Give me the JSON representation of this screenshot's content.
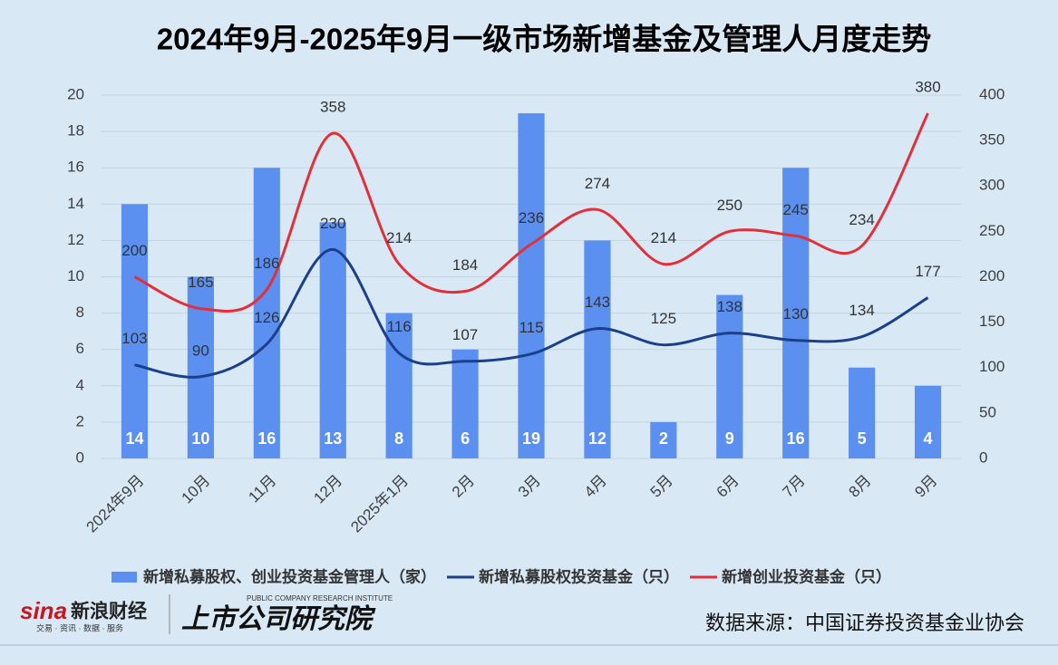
{
  "chart_data": {
    "type": "bar-line",
    "title": "2024年9月-2025年9月一级市场新增基金及管理人月度走势",
    "categories": [
      "2024年9月",
      "10月",
      "11月",
      "12月",
      "2025年1月",
      "2月",
      "3月",
      "4月",
      "5月",
      "6月",
      "7月",
      "8月",
      "9月"
    ],
    "series": [
      {
        "name": "新增私募股权、创业投资基金管理人（家）",
        "type": "bar",
        "color": "#5b8ff0",
        "values": [
          14,
          10,
          16,
          13,
          8,
          6,
          19,
          12,
          2,
          9,
          16,
          5,
          4
        ]
      },
      {
        "name": "新增私募股权投资基金（只）",
        "type": "line",
        "axis": "y2",
        "color": "#1c3f8c",
        "values": [
          103,
          90,
          126,
          230,
          116,
          107,
          115,
          143,
          125,
          138,
          130,
          134,
          177
        ]
      },
      {
        "name": "新增创业投资基金（只）",
        "type": "line",
        "axis": "y2",
        "color": "#e2303a",
        "values": [
          200,
          165,
          186,
          358,
          214,
          184,
          236,
          274,
          214,
          250,
          245,
          234,
          380
        ]
      }
    ],
    "ylim": [
      0,
      20
    ],
    "yticks": [
      0,
      2,
      4,
      6,
      8,
      10,
      12,
      14,
      16,
      18,
      20
    ],
    "y2lim": [
      0,
      400
    ],
    "y2ticks": [
      0,
      50,
      100,
      150,
      200,
      250,
      300,
      350,
      400
    ],
    "grid": true,
    "legend": "bottom",
    "source": "数据来源：中国证券投资基金业协会"
  },
  "footer": {
    "logo_mark": "sina",
    "logo_name": "新浪财经",
    "logo_tagline": "交易 · 资讯 · 数据 · 服务",
    "institute": "上市公司研究院",
    "institute_en": "PUBLIC COMPANY RESEARCH INSTITUTE"
  }
}
